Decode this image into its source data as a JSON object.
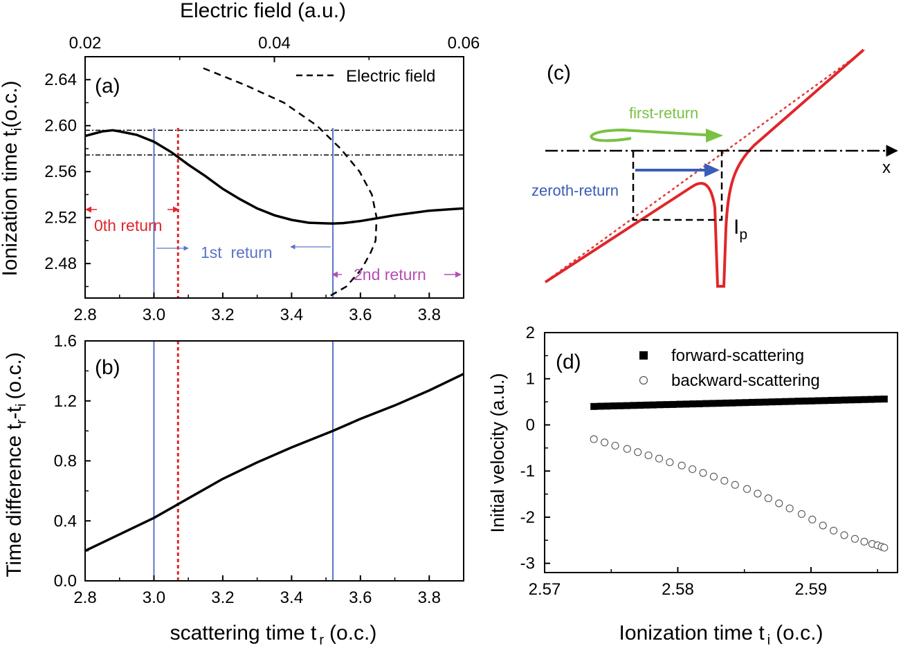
{
  "colors": {
    "black": "#000000",
    "red": "#e0262b",
    "blue": "#5b74c9",
    "purple": "#b44fb4",
    "green": "#7ac143",
    "darkblue": "#3b5cb7",
    "guide_red": "#e03a3a"
  },
  "chart_data": [
    {
      "id": "a",
      "panel_label": "(a)",
      "type": "line",
      "xlabel": "",
      "x_tick_labels": [
        "2.8",
        "3.0",
        "3.2",
        "3.4",
        "3.6",
        "3.8"
      ],
      "ylabel": "Ionization time t",
      "ylabel_sub": "i",
      "ylabel_suffix": "(o.c.)",
      "y_tick_labels": [
        "2.48",
        "2.52",
        "2.56",
        "2.60",
        "2.64"
      ],
      "xlim": [
        2.8,
        3.9
      ],
      "ylim": [
        2.45,
        2.66
      ],
      "top_axis": {
        "label": "Electric field (a.u.)",
        "lim": [
          0.02,
          0.06
        ],
        "ticks": [
          0.02,
          0.04,
          0.06
        ],
        "tick_labels": [
          "0.02",
          "0.04",
          "0.06"
        ]
      },
      "legend": {
        "entries": [
          "Electric field"
        ],
        "placement": "top-right"
      },
      "series": [
        {
          "kind": "solid",
          "x": [
            2.8,
            2.85,
            2.88,
            2.9,
            2.95,
            3.0,
            3.05,
            3.1,
            3.15,
            3.2,
            3.25,
            3.3,
            3.35,
            3.4,
            3.45,
            3.5,
            3.52,
            3.55,
            3.6,
            3.65,
            3.7,
            3.75,
            3.8,
            3.85,
            3.9
          ],
          "y": [
            2.591,
            2.595,
            2.596,
            2.595,
            2.592,
            2.586,
            2.577,
            2.566,
            2.556,
            2.545,
            2.536,
            2.528,
            2.522,
            2.518,
            2.5155,
            2.515,
            2.5148,
            2.5152,
            2.517,
            2.5195,
            2.522,
            2.524,
            2.526,
            2.527,
            2.528
          ]
        },
        {
          "name": "Electric field",
          "kind": "dashed",
          "axis": "top",
          "field": [
            0.0325,
            0.037,
            0.041,
            0.0445,
            0.047,
            0.049,
            0.0503,
            0.0508,
            0.0507,
            0.0502,
            0.0492,
            0.0476,
            0.0455
          ],
          "y": [
            2.65,
            2.635,
            2.62,
            2.6,
            2.58,
            2.56,
            2.54,
            2.52,
            2.5,
            2.49,
            2.475,
            2.46,
            2.45
          ]
        }
      ],
      "hlines": [
        2.596,
        2.5745
      ],
      "vlines": [
        {
          "x": 3.0,
          "color": "blue"
        },
        {
          "x": 3.07,
          "color": "red",
          "style": "dotted"
        },
        {
          "x": 3.52,
          "color": "blue"
        }
      ],
      "annotations": [
        "0th return",
        "1st  return",
        "2nd return"
      ]
    },
    {
      "id": "b",
      "panel_label": "(b)",
      "type": "line",
      "xlabel": "scattering time t",
      "xlabel_sub": "r",
      "xlabel_suffix": "(o.c.)",
      "x_tick_labels": [
        "2.8",
        "3.0",
        "3.2",
        "3.4",
        "3.6",
        "3.8"
      ],
      "ylabel": "Time difference t",
      "ylabel_sub1": "r",
      "ylabel_mid": "-t",
      "ylabel_sub2": "i",
      "ylabel_suffix": "(o.c.)",
      "y_tick_labels": [
        "0.0",
        "0.4",
        "0.8",
        "1.2",
        "1.6"
      ],
      "xlim": [
        2.8,
        3.9
      ],
      "ylim": [
        0.0,
        1.6
      ],
      "series": [
        {
          "kind": "solid",
          "x": [
            2.8,
            2.9,
            3.0,
            3.1,
            3.2,
            3.3,
            3.4,
            3.52,
            3.6,
            3.7,
            3.8,
            3.9
          ],
          "y": [
            0.2,
            0.31,
            0.42,
            0.55,
            0.68,
            0.79,
            0.89,
            1.0,
            1.08,
            1.17,
            1.27,
            1.38
          ]
        }
      ],
      "vlines": [
        {
          "x": 3.0,
          "color": "blue"
        },
        {
          "x": 3.07,
          "color": "red",
          "style": "dotted"
        },
        {
          "x": 3.52,
          "color": "blue"
        }
      ]
    },
    {
      "id": "c",
      "panel_label": "(c)",
      "type": "diagram",
      "labels": {
        "first": "first-return",
        "zeroth": "zeroth-return",
        "x_axis": "x",
        "ip": "I",
        "ip_sub": "p"
      }
    },
    {
      "id": "d",
      "panel_label": "(d)",
      "type": "scatter",
      "xlabel": "Ionization time t",
      "xlabel_sub": "i",
      "xlabel_suffix": "(o.c.)",
      "x_tick_labels": [
        "2.57",
        "2.58",
        "2.59"
      ],
      "ylabel": "Initial velocity (a.u.)",
      "y_tick_labels": [
        "-3",
        "-2",
        "-1",
        "0",
        "1",
        "2"
      ],
      "xlim": [
        2.57,
        2.5965
      ],
      "ylim": [
        -3.2,
        2.0
      ],
      "legend": {
        "entries": [
          "forward-scattering",
          "backward-scattering"
        ],
        "placement": "top-right"
      },
      "series": [
        {
          "name": "forward-scattering",
          "marker": "filled-square",
          "x_start": 2.5737,
          "x_end": 2.5955,
          "count": 45,
          "y_start": 0.4,
          "y_end": 0.56
        },
        {
          "name": "backward-scattering",
          "marker": "open-circle",
          "x": [
            2.5737,
            2.5745,
            2.5753,
            2.5762,
            2.577,
            2.5778,
            2.5786,
            2.5794,
            2.5803,
            2.5811,
            2.5819,
            2.5827,
            2.5835,
            2.5843,
            2.5852,
            2.586,
            2.5868,
            2.5876,
            2.5884,
            2.5893,
            2.5901,
            2.5909,
            2.5917,
            2.5925,
            2.5933,
            2.594,
            2.5946,
            2.595,
            2.5953,
            2.5955
          ],
          "y": [
            -0.31,
            -0.38,
            -0.45,
            -0.52,
            -0.59,
            -0.66,
            -0.73,
            -0.81,
            -0.88,
            -0.96,
            -1.04,
            -1.12,
            -1.21,
            -1.3,
            -1.39,
            -1.49,
            -1.59,
            -1.7,
            -1.81,
            -1.93,
            -2.05,
            -2.18,
            -2.29,
            -2.39,
            -2.47,
            -2.53,
            -2.58,
            -2.61,
            -2.64,
            -2.66
          ]
        }
      ]
    }
  ]
}
